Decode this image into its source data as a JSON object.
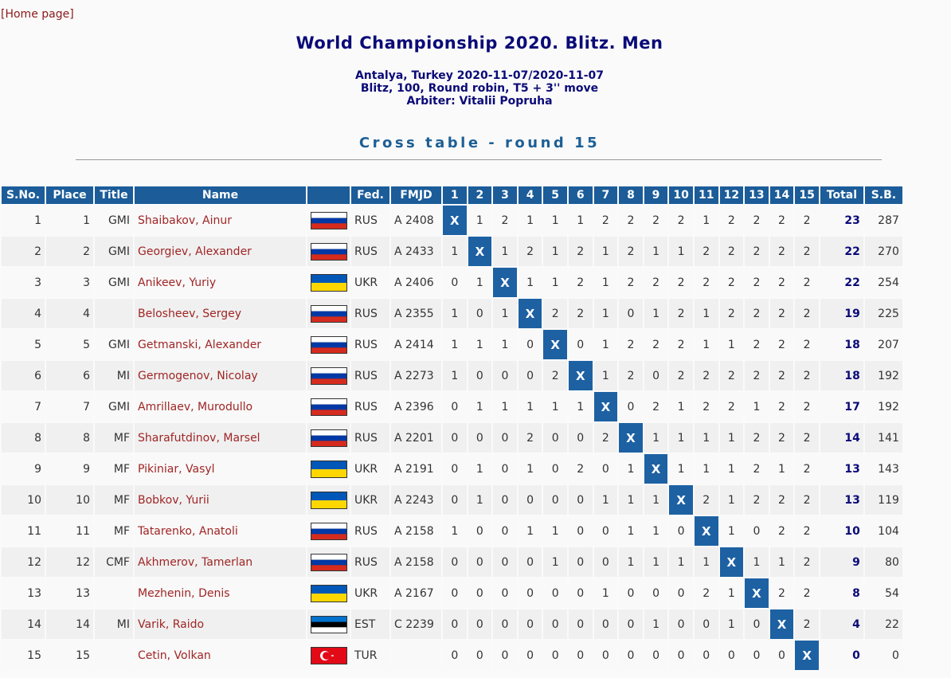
{
  "header": {
    "home_link": "[Home page]",
    "title": "World Championship 2020. Blitz. Men",
    "info": [
      "Antalya, Turkey 2020-11-07/2020-11-07",
      "Blitz, 100, Round robin, T5 + 3'' move",
      "Arbiter: Vitalii Popruha"
    ],
    "subtitle": "Cross table - round 15"
  },
  "table": {
    "columns": [
      "S.No.",
      "Place",
      "Title",
      "Name",
      "Fed.",
      "FMJD",
      1,
      2,
      3,
      4,
      5,
      6,
      7,
      8,
      9,
      10,
      11,
      12,
      13,
      14,
      15,
      "Total",
      "S.B."
    ],
    "rows": [
      {
        "sno": 1,
        "place": 1,
        "title": "GMI",
        "name": "Shaibakov, Ainur",
        "fed": "RUS",
        "fmjd": "A 2408",
        "results": [
          "X",
          1,
          2,
          1,
          1,
          1,
          2,
          2,
          2,
          2,
          1,
          2,
          2,
          2,
          2
        ],
        "total": 23,
        "sb": 287
      },
      {
        "sno": 2,
        "place": 2,
        "title": "GMI",
        "name": "Georgiev, Alexander",
        "fed": "RUS",
        "fmjd": "A 2433",
        "results": [
          1,
          "X",
          1,
          2,
          1,
          2,
          1,
          2,
          1,
          1,
          2,
          2,
          2,
          2,
          2
        ],
        "total": 22,
        "sb": 270
      },
      {
        "sno": 3,
        "place": 3,
        "title": "GMI",
        "name": "Anikeev, Yuriy",
        "fed": "UKR",
        "fmjd": "A 2406",
        "results": [
          0,
          1,
          "X",
          1,
          1,
          2,
          1,
          2,
          2,
          2,
          2,
          2,
          2,
          2,
          2
        ],
        "total": 22,
        "sb": 254
      },
      {
        "sno": 4,
        "place": 4,
        "name": "Belosheev, Sergey",
        "fed": "RUS",
        "fmjd": "A 2355",
        "results": [
          1,
          0,
          1,
          "X",
          2,
          2,
          1,
          0,
          1,
          2,
          1,
          2,
          2,
          2,
          2
        ],
        "total": 19,
        "sb": 225
      },
      {
        "sno": 5,
        "place": 5,
        "title": "GMI",
        "name": "Getmanski, Alexander",
        "fed": "RUS",
        "fmjd": "A 2414",
        "results": [
          1,
          1,
          1,
          0,
          "X",
          0,
          1,
          2,
          2,
          2,
          1,
          1,
          2,
          2,
          2
        ],
        "total": 18,
        "sb": 207
      },
      {
        "sno": 6,
        "place": 6,
        "title": "MI",
        "name": "Germogenov, Nicolay",
        "fed": "RUS",
        "fmjd": "A 2273",
        "results": [
          1,
          0,
          0,
          0,
          2,
          "X",
          1,
          2,
          0,
          2,
          2,
          2,
          2,
          2,
          2
        ],
        "total": 18,
        "sb": 192
      },
      {
        "sno": 7,
        "place": 7,
        "title": "GMI",
        "name": "Amrillaev, Murodullo",
        "fed": "RUS",
        "fmjd": "A 2396",
        "results": [
          0,
          1,
          1,
          1,
          1,
          1,
          "X",
          0,
          2,
          1,
          2,
          2,
          1,
          2,
          2
        ],
        "total": 17,
        "sb": 192
      },
      {
        "sno": 8,
        "place": 8,
        "title": "MF",
        "name": "Sharafutdinov, Marsel",
        "fed": "RUS",
        "fmjd": "A 2201",
        "results": [
          0,
          0,
          0,
          2,
          0,
          0,
          2,
          "X",
          1,
          1,
          1,
          1,
          2,
          2,
          2
        ],
        "total": 14,
        "sb": 141
      },
      {
        "sno": 9,
        "place": 9,
        "title": "MF",
        "name": "Pikiniar, Vasyl",
        "fed": "UKR",
        "fmjd": "A 2191",
        "results": [
          0,
          1,
          0,
          1,
          0,
          2,
          0,
          1,
          "X",
          1,
          1,
          1,
          2,
          1,
          2
        ],
        "total": 13,
        "sb": 143
      },
      {
        "sno": 10,
        "place": 10,
        "title": "MF",
        "name": "Bobkov, Yurii",
        "fed": "UKR",
        "fmjd": "A 2243",
        "results": [
          0,
          1,
          0,
          0,
          0,
          0,
          1,
          1,
          1,
          "X",
          2,
          1,
          2,
          2,
          2
        ],
        "total": 13,
        "sb": 119
      },
      {
        "sno": 11,
        "place": 11,
        "title": "MF",
        "name": "Tatarenko, Anatoli",
        "fed": "RUS",
        "fmjd": "A 2158",
        "results": [
          1,
          0,
          0,
          1,
          1,
          0,
          0,
          1,
          1,
          0,
          "X",
          1,
          0,
          2,
          2
        ],
        "total": 10,
        "sb": 104
      },
      {
        "sno": 12,
        "place": 12,
        "title": "CMF",
        "name": "Akhmerov, Tamerlan",
        "fed": "RUS",
        "fmjd": "A 2158",
        "results": [
          0,
          0,
          0,
          0,
          1,
          0,
          0,
          1,
          1,
          1,
          1,
          "X",
          1,
          1,
          2
        ],
        "total": 9,
        "sb": 80
      },
      {
        "sno": 13,
        "place": 13,
        "name": "Mezhenin, Denis",
        "fed": "UKR",
        "fmjd": "A 2167",
        "results": [
          0,
          0,
          0,
          0,
          0,
          0,
          1,
          0,
          0,
          0,
          2,
          1,
          "X",
          2,
          2
        ],
        "total": 8,
        "sb": 54
      },
      {
        "sno": 14,
        "place": 14,
        "title": "MI",
        "name": "Varik, Raido",
        "fed": "EST",
        "fmjd": "C 2239",
        "results": [
          0,
          0,
          0,
          0,
          0,
          0,
          0,
          0,
          1,
          0,
          0,
          1,
          0,
          "X",
          2
        ],
        "total": 4,
        "sb": 22
      },
      {
        "sno": 15,
        "place": 15,
        "name": "Cetin, Volkan",
        "fed": "TUR",
        "results": [
          0,
          0,
          0,
          0,
          0,
          0,
          0,
          0,
          0,
          0,
          0,
          0,
          0,
          0,
          "X"
        ],
        "total": 0,
        "sb": 0
      }
    ]
  }
}
